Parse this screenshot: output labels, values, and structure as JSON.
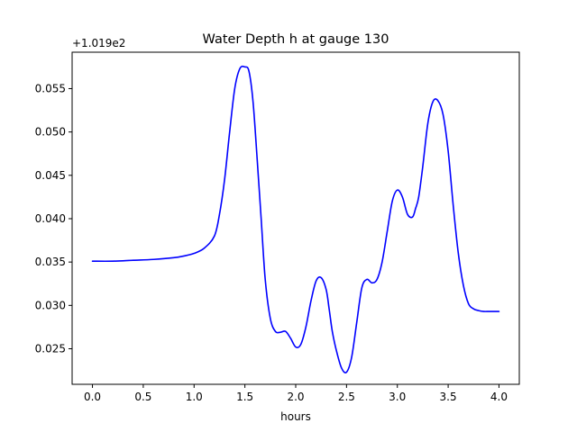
{
  "chart_data": {
    "type": "line",
    "title": "Water Depth h at gauge 130",
    "xlabel": "hours",
    "ylabel": "",
    "y_offset_label": "+1.019e2",
    "y_offset": 101.9,
    "xlim": [
      -0.2,
      4.2
    ],
    "ylim": [
      0.0209,
      0.0592
    ],
    "x_ticks": [
      0.0,
      0.5,
      1.0,
      1.5,
      2.0,
      2.5,
      3.0,
      3.5,
      4.0
    ],
    "x_tick_labels": [
      "0.0",
      "0.5",
      "1.0",
      "1.5",
      "2.0",
      "2.5",
      "3.0",
      "3.5",
      "4.0"
    ],
    "y_ticks": [
      0.025,
      0.03,
      0.035,
      0.04,
      0.045,
      0.05,
      0.055
    ],
    "y_tick_labels": [
      "0.025",
      "0.030",
      "0.035",
      "0.040",
      "0.045",
      "0.050",
      "0.055"
    ],
    "grid": false,
    "line_color": "#0000ff",
    "series": [
      {
        "x": [
          0.0,
          0.2,
          0.4,
          0.6,
          0.8,
          0.9,
          1.0,
          1.1,
          1.2,
          1.25,
          1.3,
          1.35,
          1.4,
          1.45,
          1.5,
          1.54,
          1.58,
          1.62,
          1.66,
          1.7,
          1.75,
          1.8,
          1.85,
          1.9,
          1.95,
          2.0,
          2.05,
          2.1,
          2.15,
          2.2,
          2.25,
          2.3,
          2.33,
          2.36,
          2.4,
          2.45,
          2.5,
          2.55,
          2.6,
          2.65,
          2.7,
          2.75,
          2.8,
          2.85,
          2.9,
          2.95,
          3.0,
          3.05,
          3.1,
          3.15,
          3.18,
          3.21,
          3.25,
          3.3,
          3.35,
          3.4,
          3.45,
          3.5,
          3.55,
          3.6,
          3.65,
          3.7,
          3.75,
          3.8,
          3.85,
          3.9,
          3.95,
          4.0
        ],
        "y": [
          0.0351,
          0.0351,
          0.0352,
          0.0353,
          0.0355,
          0.0357,
          0.036,
          0.0366,
          0.038,
          0.0405,
          0.0445,
          0.05,
          0.055,
          0.0573,
          0.0575,
          0.057,
          0.0535,
          0.047,
          0.04,
          0.033,
          0.0285,
          0.027,
          0.0269,
          0.027,
          0.0262,
          0.0252,
          0.0255,
          0.0275,
          0.0305,
          0.0328,
          0.0332,
          0.0318,
          0.0295,
          0.027,
          0.0248,
          0.0228,
          0.0223,
          0.024,
          0.028,
          0.032,
          0.033,
          0.0326,
          0.033,
          0.035,
          0.0385,
          0.042,
          0.0433,
          0.0425,
          0.0405,
          0.0402,
          0.0412,
          0.0425,
          0.046,
          0.051,
          0.0535,
          0.0536,
          0.052,
          0.0478,
          0.0415,
          0.036,
          0.0323,
          0.0302,
          0.0296,
          0.0294,
          0.0293,
          0.0293,
          0.0293,
          0.0293
        ]
      }
    ]
  }
}
